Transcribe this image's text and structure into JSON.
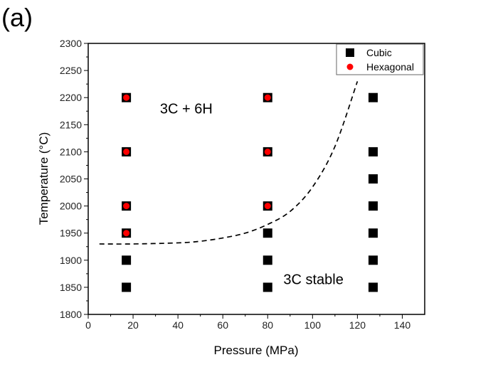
{
  "panel_label": "(a)",
  "chart_data": {
    "type": "scatter",
    "xlabel": "Pressure (MPa)",
    "ylabel": "Temperature (°C)",
    "xlim": [
      0,
      150
    ],
    "ylim": [
      1800,
      2300
    ],
    "xticks": [
      0,
      20,
      40,
      60,
      80,
      100,
      120,
      140
    ],
    "yticks": [
      1800,
      1850,
      1900,
      1950,
      2000,
      2050,
      2100,
      2150,
      2200,
      2250,
      2300
    ],
    "grid": false,
    "legend_position": "top-right",
    "series": [
      {
        "name": "Cubic",
        "marker": "square",
        "color": "#000000",
        "points": [
          [
            17,
            1850
          ],
          [
            17,
            1900
          ],
          [
            17,
            1950
          ],
          [
            17,
            2000
          ],
          [
            17,
            2100
          ],
          [
            17,
            2200
          ],
          [
            80,
            1850
          ],
          [
            80,
            1900
          ],
          [
            80,
            1950
          ],
          [
            80,
            2000
          ],
          [
            80,
            2100
          ],
          [
            80,
            2200
          ],
          [
            127,
            1850
          ],
          [
            127,
            1900
          ],
          [
            127,
            1950
          ],
          [
            127,
            2000
          ],
          [
            127,
            2050
          ],
          [
            127,
            2100
          ],
          [
            127,
            2200
          ]
        ]
      },
      {
        "name": "Hexagonal",
        "marker": "circle",
        "color": "#ff0000",
        "points": [
          [
            17,
            1950
          ],
          [
            17,
            2000
          ],
          [
            17,
            2100
          ],
          [
            17,
            2200
          ],
          [
            80,
            2000
          ],
          [
            80,
            2100
          ],
          [
            80,
            2200
          ]
        ]
      }
    ],
    "boundary_curve": {
      "style": "dashed",
      "color": "#000000",
      "points": [
        [
          5,
          1930
        ],
        [
          20,
          1930
        ],
        [
          40,
          1932
        ],
        [
          50,
          1935
        ],
        [
          60,
          1941
        ],
        [
          70,
          1950
        ],
        [
          80,
          1966
        ],
        [
          90,
          1990
        ],
        [
          100,
          2035
        ],
        [
          110,
          2110
        ],
        [
          120,
          2230
        ]
      ]
    },
    "annotations": [
      {
        "text": "3C + 6H",
        "x": 32,
        "y": 2180
      },
      {
        "text": "3C stable",
        "x": 87,
        "y": 1865
      }
    ]
  }
}
